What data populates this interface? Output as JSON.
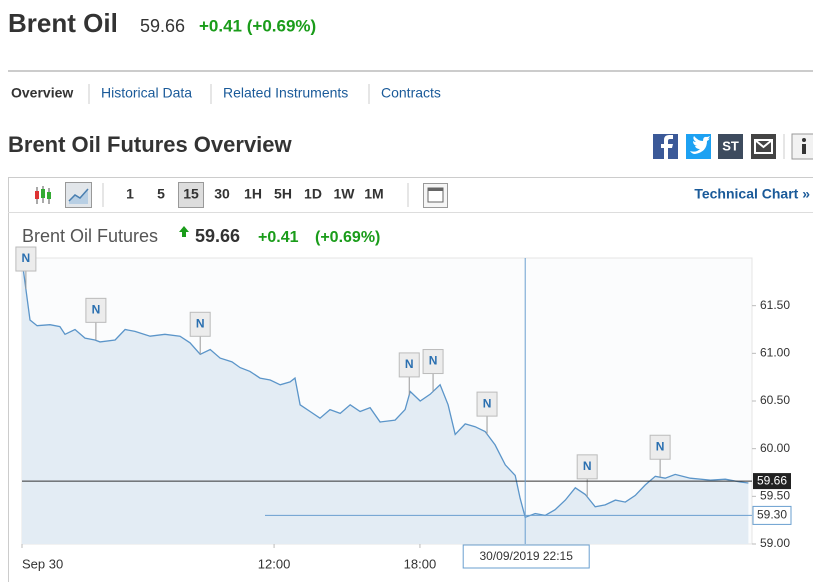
{
  "header": {
    "title": "Brent Oil",
    "price": "59.66",
    "change": "+0.41 (+0.69%)"
  },
  "tabs": [
    "Overview",
    "Historical Data",
    "Related Instruments",
    "Contracts"
  ],
  "section_title": "Brent Oil Futures Overview",
  "share_icons": {
    "stocktwits": "ST"
  },
  "toolbar": {
    "intervals": [
      "1",
      "5",
      "15",
      "30",
      "1H",
      "5H",
      "1D",
      "1W",
      "1M"
    ],
    "active": 2,
    "technical_chart": "Technical Chart »"
  },
  "chart_data": {
    "type": "area",
    "title": "Brent Oil Futures",
    "last": 59.66,
    "change": "+0.41",
    "change_pct": "(+0.69%)",
    "color": "#5b95c9",
    "fill": "#e3ecf4",
    "x": [
      1.63,
      1.96,
      2.25,
      2.78,
      3.19,
      3.4,
      3.81,
      4.22,
      4.63,
      4.84,
      5.46,
      5.87,
      6.28,
      6.9,
      7.51,
      8.13,
      8.54,
      8.96,
      9.37,
      9.78,
      10.27,
      10.6,
      11.01,
      11.42,
      11.84,
      12.25,
      12.66,
      12.86,
      13.07,
      13.48,
      13.89,
      14.3,
      14.72,
      15.13,
      15.54,
      15.95,
      16.36,
      16.98,
      17.39,
      17.6,
      18.01,
      18.42,
      18.83,
      19.16,
      19.45,
      19.86,
      20.27,
      20.68,
      21.09,
      21.51,
      21.92,
      22.12,
      22.33,
      22.74,
      23.15,
      23.56,
      23.98,
      24.39,
      24.8,
      25.21,
      25.62,
      26.04,
      26.45,
      26.86,
      27.27,
      27.68,
      28.09,
      28.5,
      29.12,
      29.95,
      30.56,
      31.18,
      31.51
    ],
    "values": [
      61.98,
      61.35,
      61.29,
      61.3,
      61.28,
      61.2,
      61.25,
      61.16,
      61.14,
      61.12,
      61.14,
      61.25,
      61.23,
      61.18,
      61.2,
      61.18,
      61.11,
      60.99,
      61.04,
      60.95,
      60.91,
      60.85,
      60.81,
      60.74,
      60.72,
      60.67,
      60.7,
      60.74,
      60.46,
      60.39,
      60.32,
      60.41,
      60.37,
      60.46,
      60.39,
      60.43,
      60.28,
      60.3,
      60.41,
      60.6,
      60.5,
      60.57,
      60.67,
      60.46,
      60.15,
      60.26,
      60.23,
      60.18,
      60.04,
      59.83,
      59.72,
      59.48,
      59.28,
      59.32,
      59.3,
      59.36,
      59.46,
      59.59,
      59.52,
      59.39,
      59.41,
      59.46,
      59.44,
      59.51,
      59.62,
      59.71,
      59.69,
      59.73,
      59.69,
      59.67,
      59.68,
      59.65,
      59.64
    ],
    "xlim": [
      1.63,
      31.66
    ],
    "ylim": [
      59,
      62
    ],
    "xticks": [
      {
        "value": 1.63,
        "label": "Sep 30"
      },
      {
        "value": 12,
        "label": "12:00"
      },
      {
        "value": 18,
        "label": "18:00"
      }
    ],
    "yticks": [
      {
        "value": 59,
        "label": "59.00"
      },
      {
        "value": 59.5,
        "label": "59.50"
      },
      {
        "value": 60,
        "label": "60.00"
      },
      {
        "value": 60.5,
        "label": "60.50"
      },
      {
        "value": 61,
        "label": "61.00"
      },
      {
        "value": 61.5,
        "label": "61.50"
      }
    ],
    "news": [
      {
        "x": 1.79,
        "label": "N"
      },
      {
        "x": 4.67,
        "label": "N"
      },
      {
        "x": 8.96,
        "label": "N"
      },
      {
        "x": 17.56,
        "label": "N"
      },
      {
        "x": 18.54,
        "label": "N"
      },
      {
        "x": 20.76,
        "label": "N"
      },
      {
        "x": 24.88,
        "label": "N"
      },
      {
        "x": 27.88,
        "label": "N"
      }
    ],
    "crosshair": {
      "x": 22.33,
      "x_label": "30/09/2019 22:15",
      "y": {
        "value": 59.3,
        "label": "59.30"
      }
    }
  }
}
